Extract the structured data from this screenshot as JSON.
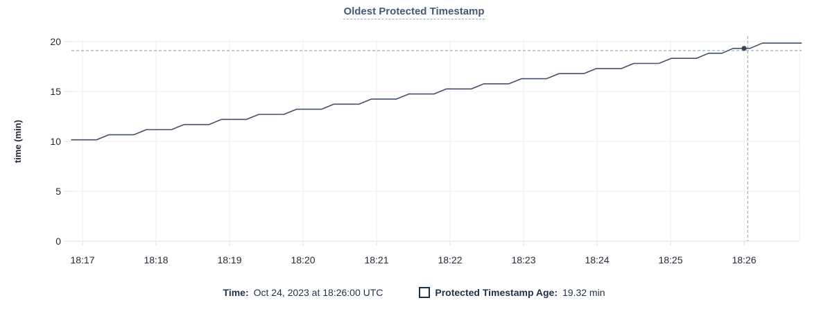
{
  "title": "Oldest Protected Timestamp",
  "legend": {
    "time_label": "Time:",
    "time_value": "Oct 24, 2023 at 18:26:00 UTC",
    "series_label": "Protected Timestamp Age:",
    "series_value": "19.32 min"
  },
  "colors": {
    "line": "#42516b",
    "hover_dot": "#394455",
    "title_text": "#475872",
    "title_underline": "#9aa9bd",
    "legend_text": "#1d3148",
    "axis_text": "#242a35",
    "grid": "#ededef",
    "axis_line": "#dcdee2",
    "crosshair": "#9db4bf"
  },
  "chart_data": {
    "type": "line",
    "title": "Oldest Protected Timestamp",
    "xlabel": "",
    "ylabel": "time (min)",
    "ylim": [
      0,
      20
    ],
    "y_ticks": [
      0,
      5,
      10,
      15,
      20
    ],
    "y_tick_labels": [
      "0",
      "5",
      "10",
      "15",
      "20"
    ],
    "x_ticks_minutes": [
      17,
      18,
      19,
      20,
      21,
      22,
      23,
      24,
      25,
      26
    ],
    "x_tick_labels": [
      "18:17",
      "18:18",
      "18:19",
      "18:20",
      "18:21",
      "18:22",
      "18:23",
      "18:24",
      "18:25",
      "18:26"
    ],
    "x_domain_minutes": [
      16.85,
      26.78
    ],
    "grid": true,
    "legend_position": "bottom",
    "series": [
      {
        "name": "Protected Timestamp Age",
        "unit": "min",
        "points": [
          [
            16.85,
            10.16
          ],
          [
            17.19,
            10.16
          ],
          [
            17.36,
            10.67
          ],
          [
            17.7,
            10.67
          ],
          [
            17.87,
            11.18
          ],
          [
            18.21,
            11.18
          ],
          [
            18.38,
            11.69
          ],
          [
            18.72,
            11.69
          ],
          [
            18.89,
            12.2
          ],
          [
            19.23,
            12.2
          ],
          [
            19.4,
            12.71
          ],
          [
            19.74,
            12.71
          ],
          [
            19.91,
            13.22
          ],
          [
            20.25,
            13.22
          ],
          [
            20.42,
            13.73
          ],
          [
            20.76,
            13.73
          ],
          [
            20.93,
            14.24
          ],
          [
            21.27,
            14.24
          ],
          [
            21.44,
            14.75
          ],
          [
            21.78,
            14.75
          ],
          [
            21.95,
            15.26
          ],
          [
            22.29,
            15.26
          ],
          [
            22.46,
            15.77
          ],
          [
            22.8,
            15.77
          ],
          [
            22.97,
            16.28
          ],
          [
            23.31,
            16.28
          ],
          [
            23.48,
            16.79
          ],
          [
            23.82,
            16.79
          ],
          [
            23.99,
            17.3
          ],
          [
            24.33,
            17.3
          ],
          [
            24.5,
            17.81
          ],
          [
            24.84,
            17.81
          ],
          [
            25.01,
            18.32
          ],
          [
            25.35,
            18.32
          ],
          [
            25.52,
            18.83
          ],
          [
            25.7,
            18.83
          ],
          [
            25.85,
            19.32
          ],
          [
            26.08,
            19.32
          ],
          [
            26.25,
            19.85
          ],
          [
            26.78,
            19.85
          ]
        ]
      }
    ],
    "hover": {
      "time_label": "18:26",
      "time_minutes": 26.0,
      "value": 19.32,
      "crosshair_time_minutes": 26.05,
      "crosshair_value": 19.1
    }
  }
}
